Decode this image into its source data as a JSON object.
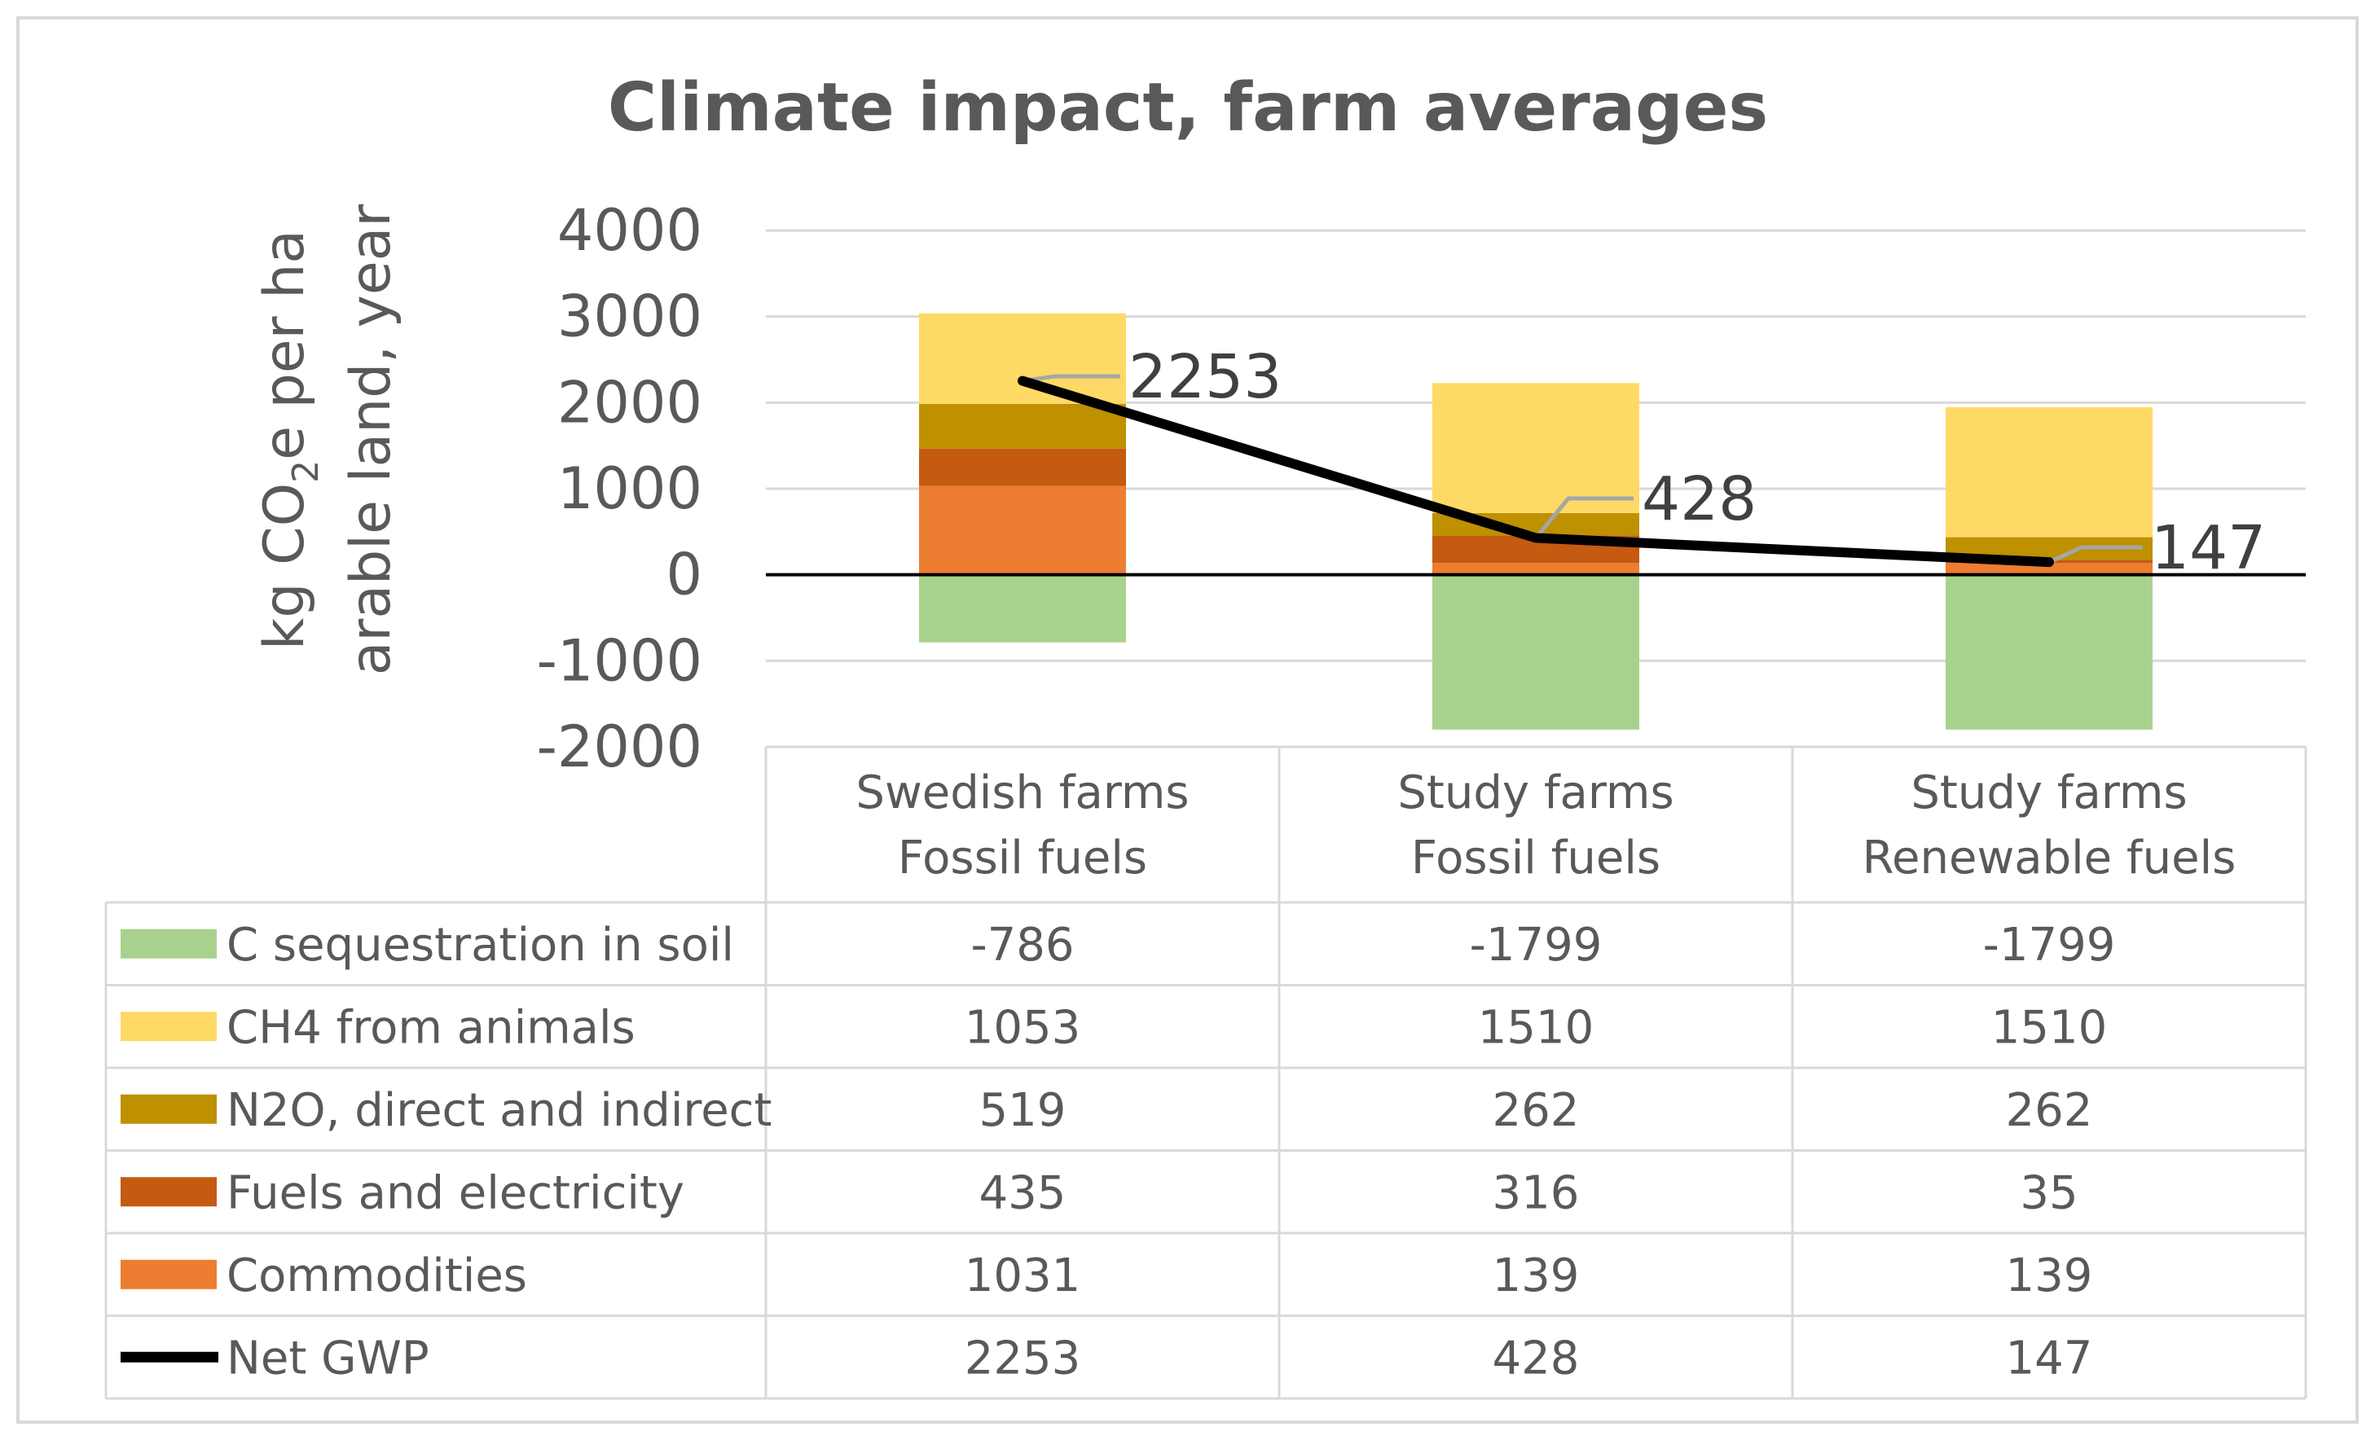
{
  "chart_data": {
    "type": "bar",
    "stacked": true,
    "title": "Climate impact, farm averages",
    "ylabel_line1": "kg CO",
    "ylabel_sub": "2",
    "ylabel_line1_rest": "e per ha",
    "ylabel_line2": "arable land, year",
    "ylim": [
      -2000,
      4000
    ],
    "yticks": [
      "4000",
      "3000",
      "2000",
      "1000",
      "0",
      "-1000",
      "-2000"
    ],
    "ytick_values": [
      4000,
      3000,
      2000,
      1000,
      0,
      -1000,
      -2000
    ],
    "categories": [
      {
        "line1": "Swedish farms",
        "line2": "Fossil fuels"
      },
      {
        "line1": "Study farms",
        "line2": "Fossil fuels"
      },
      {
        "line1": "Study farms",
        "line2": "Renewable fuels"
      }
    ],
    "series": [
      {
        "name": "C sequestration in soil",
        "color": "#a9d18e",
        "values": [
          -786,
          -1799,
          -1799
        ],
        "labels": [
          "-786",
          "-1799",
          "-1799"
        ]
      },
      {
        "name": "CH4  from animals",
        "color": "#ffd966",
        "values": [
          1053,
          1510,
          1510
        ],
        "labels": [
          "1053",
          "1510",
          "1510"
        ]
      },
      {
        "name": "N2O, direct and indirect",
        "color": "#bf9000",
        "values": [
          519,
          262,
          262
        ],
        "labels": [
          "519",
          "262",
          "262"
        ]
      },
      {
        "name": "Fuels and electricity",
        "color": "#c55a11",
        "values": [
          435,
          316,
          35
        ],
        "labels": [
          "435",
          "316",
          "35"
        ]
      },
      {
        "name": "Commodities",
        "color": "#ed7d31",
        "values": [
          1031,
          139,
          139
        ],
        "labels": [
          "1031",
          "139",
          "139"
        ]
      }
    ],
    "line_series": {
      "name": "Net GWP",
      "color": "#000000",
      "values": [
        2253,
        428,
        147
      ],
      "labels": [
        "2253",
        "428",
        "147"
      ]
    },
    "stack_order": [
      4,
      3,
      2,
      1
    ]
  }
}
